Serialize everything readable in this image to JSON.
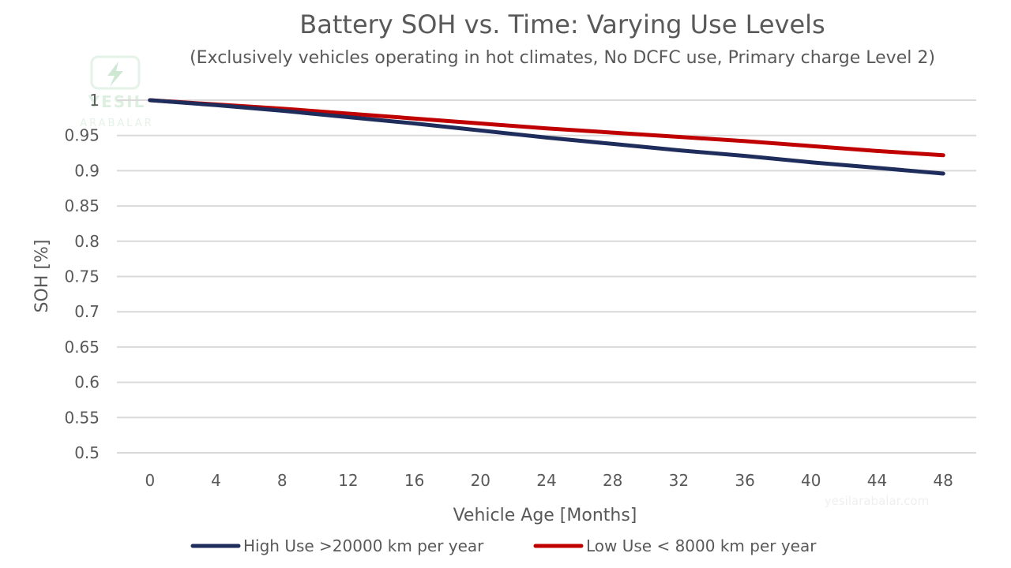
{
  "chart_data": {
    "type": "line",
    "title": "Battery SOH vs. Time: Varying Use Levels",
    "subtitle": "(Exclusively vehicles operating in hot climates, No DCFC use, Primary charge Level 2)",
    "xlabel": "Vehicle Age [Months]",
    "ylabel": "SOH [%]",
    "x": [
      0,
      4,
      8,
      12,
      16,
      20,
      24,
      28,
      32,
      36,
      40,
      44,
      48
    ],
    "xticks": [
      "0",
      "4",
      "8",
      "12",
      "16",
      "20",
      "24",
      "28",
      "32",
      "36",
      "40",
      "44",
      "48"
    ],
    "yticks": [
      "0.5",
      "0.55",
      "0.6",
      "0.65",
      "0.7",
      "0.75",
      "0.8",
      "0.85",
      "0.9",
      "0.95",
      "1"
    ],
    "ylim": [
      0.5,
      1.0
    ],
    "xlim": [
      -2,
      50
    ],
    "grid": "horizontal",
    "legend_position": "bottom",
    "series": [
      {
        "name": "High Use >20000 km per year",
        "color": "#1f2d5c",
        "values": [
          1.0,
          0.993,
          0.985,
          0.976,
          0.967,
          0.957,
          0.947,
          0.938,
          0.929,
          0.921,
          0.912,
          0.904,
          0.896
        ]
      },
      {
        "name": "Low Use < 8000 km per year",
        "color": "#c00000",
        "values": [
          1.0,
          0.994,
          0.988,
          0.981,
          0.974,
          0.967,
          0.96,
          0.954,
          0.948,
          0.942,
          0.935,
          0.928,
          0.922
        ]
      }
    ]
  },
  "watermark": {
    "brand": "YESIL",
    "brand_sub": "ARABALAR",
    "url": "yesilarabalar.com"
  }
}
